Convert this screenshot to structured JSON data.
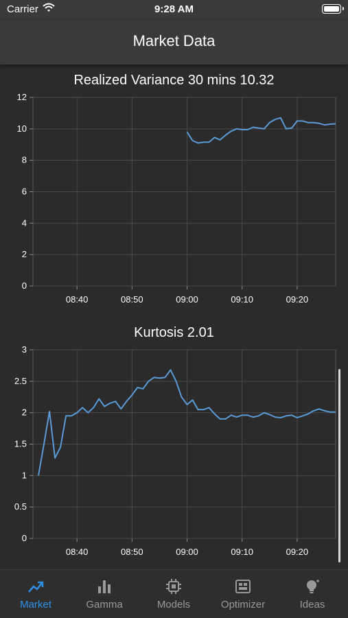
{
  "status_bar": {
    "carrier": "Carrier",
    "time": "9:28 AM"
  },
  "header": {
    "title": "Market Data"
  },
  "charts": [
    {
      "title": "Realized Variance 30 mins 10.32",
      "y_ticks": [
        "0",
        "2",
        "4",
        "6",
        "8",
        "10",
        "12"
      ],
      "x_ticks": [
        "08:40",
        "08:50",
        "09:00",
        "09:10",
        "09:20"
      ]
    },
    {
      "title": "Kurtosis 2.01",
      "y_ticks": [
        "0",
        "0.5",
        "1",
        "1.5",
        "2",
        "2.5",
        "3"
      ],
      "x_ticks": [
        "08:40",
        "08:50",
        "09:00",
        "09:10",
        "09:20"
      ]
    }
  ],
  "chart_data": [
    {
      "type": "line",
      "title": "Realized Variance 30 mins 10.32",
      "xlabel": "",
      "ylabel": "",
      "x_unit": "time",
      "xlim": [
        "08:32",
        "09:27"
      ],
      "ylim": [
        0,
        12
      ],
      "y_ticks": [
        0,
        2,
        4,
        6,
        8,
        10,
        12
      ],
      "x_ticks": [
        "08:40",
        "08:50",
        "09:00",
        "09:10",
        "09:20"
      ],
      "grid": true,
      "line_color": "#5b9bd5",
      "series": [
        {
          "x": [
            "09:00",
            "09:01",
            "09:02",
            "09:03",
            "09:04",
            "09:05",
            "09:06",
            "09:07",
            "09:08",
            "09:09",
            "09:10",
            "09:11",
            "09:12",
            "09:13",
            "09:14",
            "09:15",
            "09:16",
            "09:17",
            "09:18",
            "09:19",
            "09:20",
            "09:21",
            "09:22",
            "09:23",
            "09:24",
            "09:25",
            "09:26",
            "09:27"
          ],
          "values": [
            9.8,
            9.25,
            9.1,
            9.15,
            9.15,
            9.45,
            9.3,
            9.6,
            9.85,
            10.0,
            9.95,
            9.95,
            10.1,
            10.05,
            10.0,
            10.4,
            10.6,
            10.7,
            10.0,
            10.05,
            10.5,
            10.5,
            10.4,
            10.4,
            10.35,
            10.25,
            10.3,
            10.32
          ]
        }
      ]
    },
    {
      "type": "line",
      "title": "Kurtosis 2.01",
      "xlabel": "",
      "ylabel": "",
      "x_unit": "time",
      "xlim": [
        "08:32",
        "09:27"
      ],
      "ylim": [
        0,
        3
      ],
      "y_ticks": [
        0,
        0.5,
        1,
        1.5,
        2,
        2.5,
        3
      ],
      "x_ticks": [
        "08:40",
        "08:50",
        "09:00",
        "09:10",
        "09:20"
      ],
      "grid": true,
      "line_color": "#5b9bd5",
      "series": [
        {
          "x": [
            "08:33",
            "08:34",
            "08:35",
            "08:36",
            "08:37",
            "08:38",
            "08:39",
            "08:40",
            "08:41",
            "08:42",
            "08:43",
            "08:44",
            "08:45",
            "08:46",
            "08:47",
            "08:48",
            "08:49",
            "08:50",
            "08:51",
            "08:52",
            "08:53",
            "08:54",
            "08:55",
            "08:56",
            "08:57",
            "08:58",
            "08:59",
            "09:00",
            "09:01",
            "09:02",
            "09:03",
            "09:04",
            "09:05",
            "09:06",
            "09:07",
            "09:08",
            "09:09",
            "09:10",
            "09:11",
            "09:12",
            "09:13",
            "09:14",
            "09:15",
            "09:16",
            "09:17",
            "09:18",
            "09:19",
            "09:20",
            "09:21",
            "09:22",
            "09:23",
            "09:24",
            "09:25",
            "09:26",
            "09:27"
          ],
          "values": [
            1.0,
            1.5,
            2.02,
            1.28,
            1.45,
            1.95,
            1.95,
            2.0,
            2.08,
            2.0,
            2.08,
            2.22,
            2.1,
            2.15,
            2.18,
            2.06,
            2.18,
            2.28,
            2.4,
            2.38,
            2.5,
            2.56,
            2.55,
            2.56,
            2.68,
            2.5,
            2.25,
            2.13,
            2.2,
            2.05,
            2.05,
            2.08,
            1.98,
            1.9,
            1.9,
            1.96,
            1.93,
            1.96,
            1.96,
            1.93,
            1.95,
            2.0,
            1.97,
            1.93,
            1.92,
            1.95,
            1.96,
            1.92,
            1.95,
            1.98,
            2.03,
            2.06,
            2.03,
            2.01,
            2.01
          ]
        }
      ]
    }
  ],
  "tabs": [
    {
      "label": "Market",
      "icon": "trend-line-icon",
      "active": true
    },
    {
      "label": "Gamma",
      "icon": "bar-chart-icon",
      "active": false
    },
    {
      "label": "Models",
      "icon": "cpu-chip-icon",
      "active": false
    },
    {
      "label": "Optimizer",
      "icon": "circuit-board-icon",
      "active": false
    },
    {
      "label": "Ideas",
      "icon": "lightbulb-icon",
      "active": false
    }
  ],
  "colors": {
    "background": "#2b2b2b",
    "bars": "#3a3a3a",
    "accent": "#2f8fe6",
    "line": "#5b9bd5",
    "inactive_tab": "#9a9a9a"
  }
}
